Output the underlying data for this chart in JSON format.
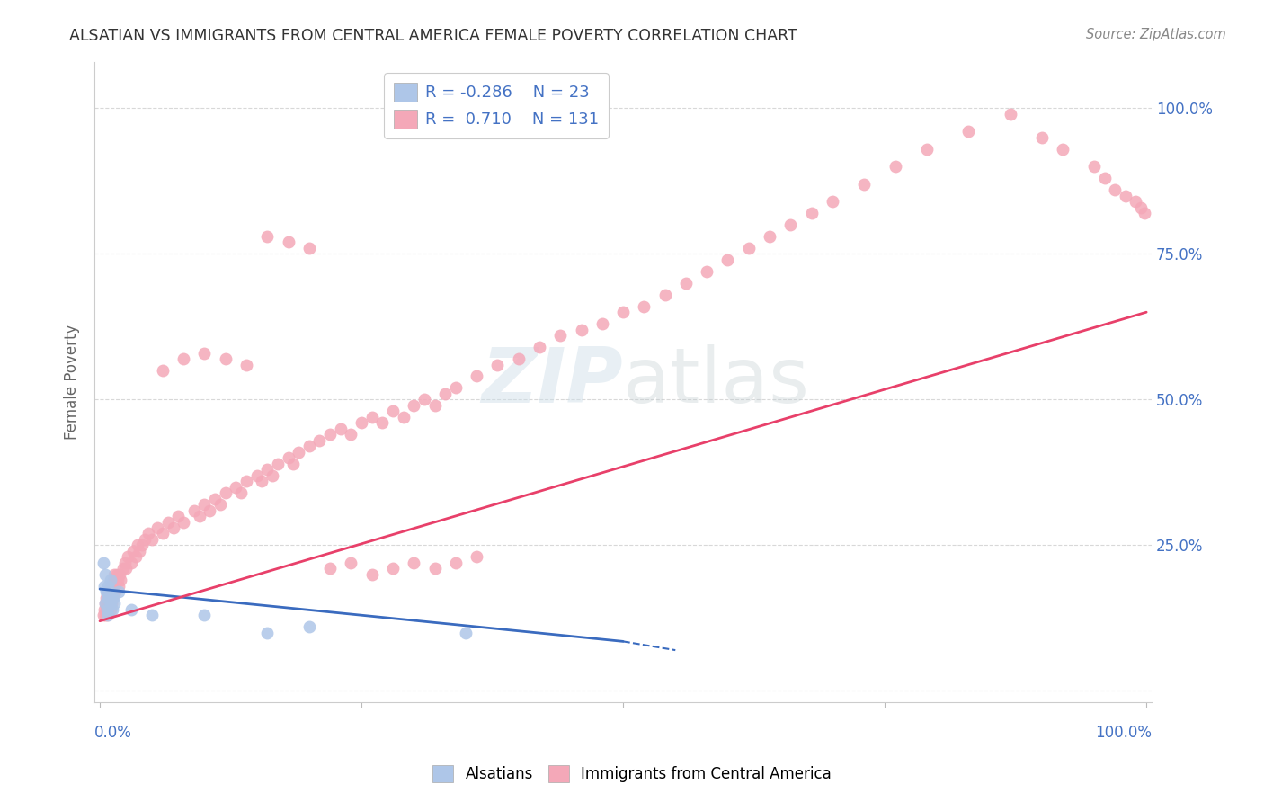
{
  "title": "ALSATIAN VS IMMIGRANTS FROM CENTRAL AMERICA FEMALE POVERTY CORRELATION CHART",
  "source": "Source: ZipAtlas.com",
  "ylabel": "Female Poverty",
  "legend_r_blue": "-0.286",
  "legend_n_blue": "23",
  "legend_r_pink": "0.710",
  "legend_n_pink": "131",
  "blue_color": "#aec6e8",
  "pink_color": "#f4a8b8",
  "blue_line_color": "#3a6bbf",
  "pink_line_color": "#e8406a",
  "label_color": "#4472c4",
  "title_color": "#333333",
  "source_color": "#888888",
  "grid_color": "#d8d8d8",
  "blue_x": [
    0.003,
    0.004,
    0.005,
    0.005,
    0.006,
    0.007,
    0.007,
    0.008,
    0.008,
    0.009,
    0.01,
    0.01,
    0.011,
    0.012,
    0.013,
    0.014,
    0.018,
    0.03,
    0.05,
    0.1,
    0.16,
    0.2,
    0.35
  ],
  "blue_y": [
    0.22,
    0.18,
    0.2,
    0.15,
    0.17,
    0.16,
    0.14,
    0.18,
    0.13,
    0.17,
    0.15,
    0.19,
    0.16,
    0.14,
    0.16,
    0.15,
    0.17,
    0.14,
    0.13,
    0.13,
    0.1,
    0.11,
    0.1
  ],
  "pink_x": [
    0.003,
    0.004,
    0.005,
    0.005,
    0.006,
    0.006,
    0.007,
    0.007,
    0.007,
    0.008,
    0.008,
    0.009,
    0.009,
    0.01,
    0.01,
    0.01,
    0.011,
    0.011,
    0.012,
    0.012,
    0.013,
    0.013,
    0.014,
    0.014,
    0.015,
    0.015,
    0.016,
    0.017,
    0.018,
    0.019,
    0.02,
    0.022,
    0.024,
    0.025,
    0.027,
    0.03,
    0.032,
    0.034,
    0.036,
    0.038,
    0.04,
    0.043,
    0.046,
    0.05,
    0.055,
    0.06,
    0.065,
    0.07,
    0.075,
    0.08,
    0.09,
    0.095,
    0.1,
    0.105,
    0.11,
    0.115,
    0.12,
    0.13,
    0.135,
    0.14,
    0.15,
    0.155,
    0.16,
    0.165,
    0.17,
    0.18,
    0.185,
    0.19,
    0.2,
    0.21,
    0.22,
    0.23,
    0.24,
    0.25,
    0.26,
    0.27,
    0.28,
    0.29,
    0.3,
    0.31,
    0.32,
    0.33,
    0.34,
    0.36,
    0.38,
    0.4,
    0.42,
    0.44,
    0.46,
    0.48,
    0.5,
    0.52,
    0.54,
    0.56,
    0.58,
    0.6,
    0.62,
    0.64,
    0.66,
    0.68,
    0.7,
    0.73,
    0.76,
    0.79,
    0.83,
    0.87,
    0.9,
    0.92,
    0.95,
    0.96,
    0.97,
    0.98,
    0.99,
    0.995,
    0.998,
    0.06,
    0.08,
    0.1,
    0.12,
    0.14,
    0.16,
    0.18,
    0.2,
    0.22,
    0.24,
    0.26,
    0.28,
    0.3,
    0.32,
    0.34,
    0.36
  ],
  "pink_y": [
    0.13,
    0.14,
    0.13,
    0.15,
    0.14,
    0.16,
    0.13,
    0.15,
    0.17,
    0.14,
    0.16,
    0.15,
    0.17,
    0.14,
    0.16,
    0.18,
    0.15,
    0.17,
    0.16,
    0.18,
    0.17,
    0.19,
    0.18,
    0.2,
    0.17,
    0.19,
    0.2,
    0.19,
    0.18,
    0.2,
    0.19,
    0.21,
    0.22,
    0.21,
    0.23,
    0.22,
    0.24,
    0.23,
    0.25,
    0.24,
    0.25,
    0.26,
    0.27,
    0.26,
    0.28,
    0.27,
    0.29,
    0.28,
    0.3,
    0.29,
    0.31,
    0.3,
    0.32,
    0.31,
    0.33,
    0.32,
    0.34,
    0.35,
    0.34,
    0.36,
    0.37,
    0.36,
    0.38,
    0.37,
    0.39,
    0.4,
    0.39,
    0.41,
    0.42,
    0.43,
    0.44,
    0.45,
    0.44,
    0.46,
    0.47,
    0.46,
    0.48,
    0.47,
    0.49,
    0.5,
    0.49,
    0.51,
    0.52,
    0.54,
    0.56,
    0.57,
    0.59,
    0.61,
    0.62,
    0.63,
    0.65,
    0.66,
    0.68,
    0.7,
    0.72,
    0.74,
    0.76,
    0.78,
    0.8,
    0.82,
    0.84,
    0.87,
    0.9,
    0.93,
    0.96,
    0.99,
    0.95,
    0.93,
    0.9,
    0.88,
    0.86,
    0.85,
    0.84,
    0.83,
    0.82,
    0.55,
    0.57,
    0.58,
    0.57,
    0.56,
    0.78,
    0.77,
    0.76,
    0.21,
    0.22,
    0.2,
    0.21,
    0.22,
    0.21,
    0.22,
    0.23
  ],
  "blue_line_x0": 0.0,
  "blue_line_y0": 0.175,
  "blue_line_x1_solid": 0.5,
  "blue_line_y1_solid": 0.085,
  "blue_line_x1_dash": 0.55,
  "blue_line_y1_dash": 0.07,
  "pink_line_x0": 0.0,
  "pink_line_y0": 0.12,
  "pink_line_x1": 1.0,
  "pink_line_y1": 0.65,
  "xlim": [
    0.0,
    1.0
  ],
  "ylim": [
    0.0,
    1.05
  ]
}
